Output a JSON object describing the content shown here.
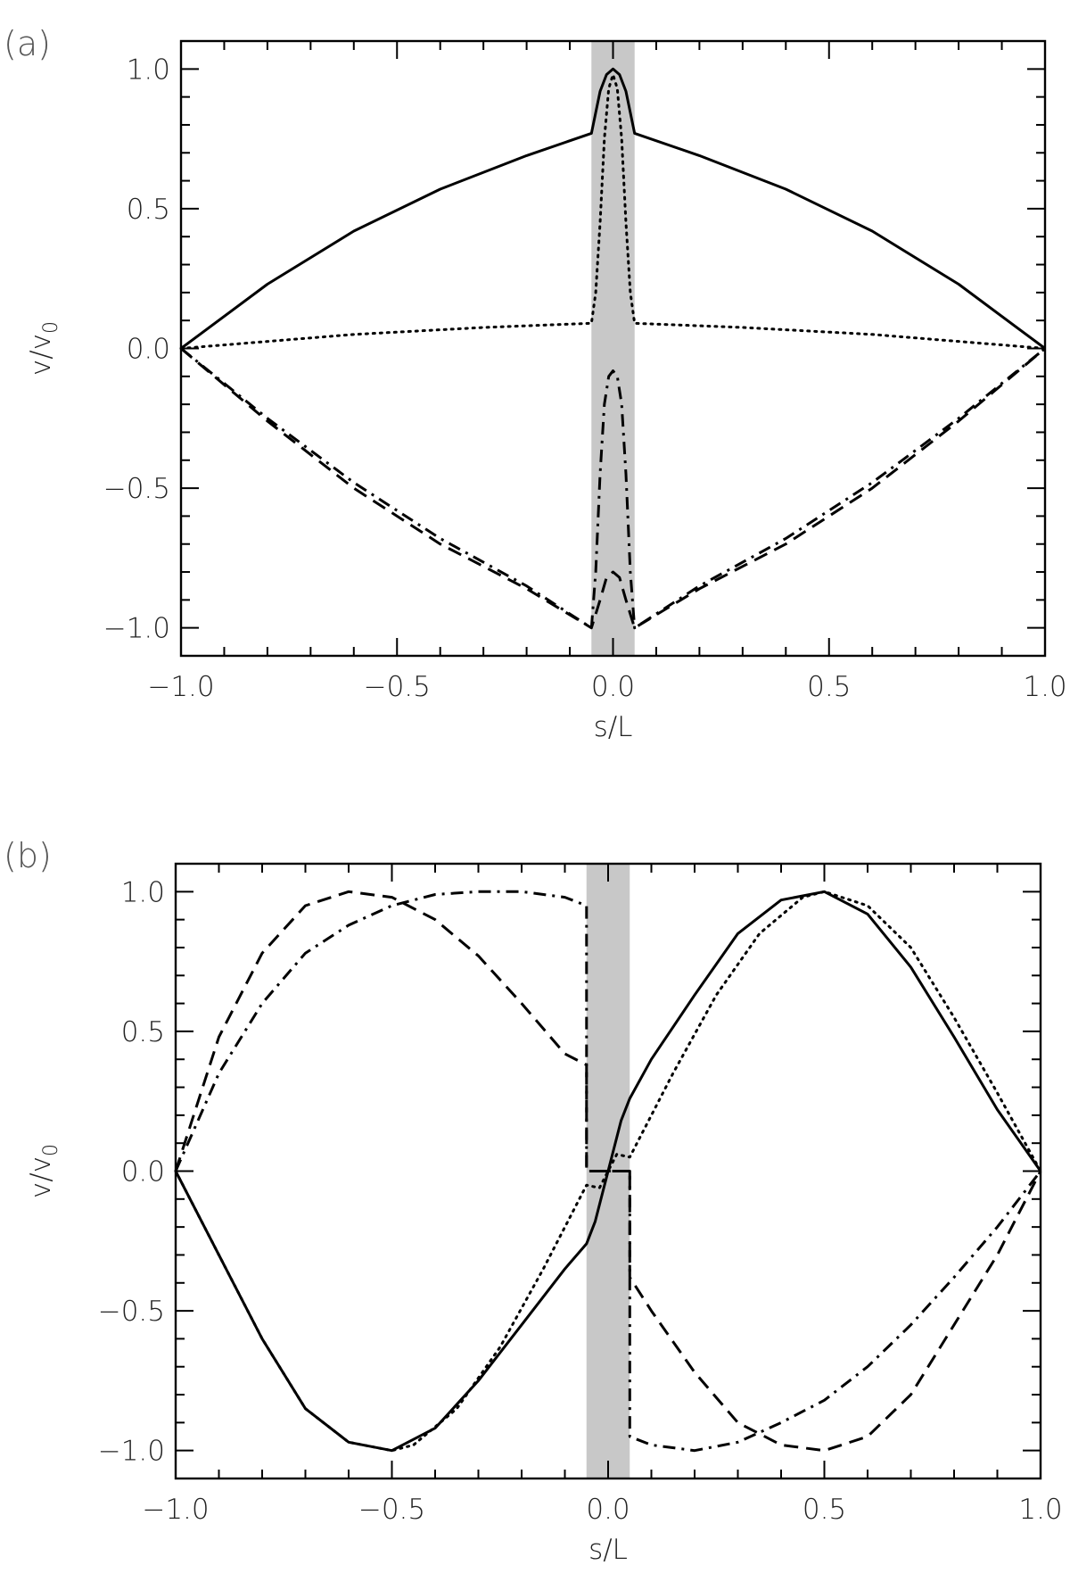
{
  "chart_data": [
    {
      "panel_label": "(a)",
      "type": "line",
      "xlabel": "s/L",
      "ylabel": "v/v0",
      "ylabel_main": "v/v",
      "ylabel_sub": "0",
      "xlim": [
        -1.0,
        1.0
      ],
      "ylim": [
        -1.1,
        1.1
      ],
      "xticks": [
        -1.0,
        -0.5,
        0.0,
        0.5,
        1.0
      ],
      "xtick_labels": [
        "−1.0",
        "−0.5",
        "0.0",
        "0.5",
        "1.0"
      ],
      "yticks": [
        -1.0,
        -0.5,
        0.0,
        0.5,
        1.0
      ],
      "ytick_labels": [
        "−1.0",
        "−0.5",
        "0.0",
        "0.5",
        "1.0"
      ],
      "shaded_band": [
        -0.05,
        0.05
      ],
      "grid": false,
      "series": [
        {
          "style": "solid",
          "x": [
            -1.0,
            -0.8,
            -0.6,
            -0.4,
            -0.2,
            -0.05,
            -0.03,
            -0.015,
            0.0,
            0.015,
            0.03,
            0.05,
            0.2,
            0.4,
            0.6,
            0.8,
            1.0
          ],
          "y": [
            0.0,
            0.23,
            0.42,
            0.57,
            0.69,
            0.77,
            0.92,
            0.98,
            1.0,
            0.98,
            0.92,
            0.77,
            0.69,
            0.57,
            0.42,
            0.23,
            0.0
          ]
        },
        {
          "style": "dotted",
          "x": [
            -1.0,
            -0.6,
            -0.3,
            -0.05,
            -0.04,
            -0.03,
            -0.02,
            -0.01,
            0.0,
            0.01,
            0.02,
            0.03,
            0.04,
            0.05,
            0.3,
            0.6,
            1.0
          ],
          "y": [
            0.0,
            0.05,
            0.075,
            0.09,
            0.2,
            0.45,
            0.75,
            0.93,
            0.98,
            0.93,
            0.75,
            0.45,
            0.2,
            0.09,
            0.075,
            0.05,
            0.0
          ]
        },
        {
          "style": "dashed",
          "x": [
            -1.0,
            -0.8,
            -0.6,
            -0.4,
            -0.2,
            -0.05,
            -0.03,
            -0.015,
            0.0,
            0.015,
            0.03,
            0.05,
            0.2,
            0.4,
            0.6,
            0.8,
            1.0
          ],
          "y": [
            0.0,
            -0.26,
            -0.5,
            -0.7,
            -0.86,
            -1.0,
            -0.9,
            -0.82,
            -0.8,
            -0.82,
            -0.9,
            -1.0,
            -0.86,
            -0.7,
            -0.5,
            -0.26,
            0.0
          ]
        },
        {
          "style": "dash-dot",
          "x": [
            -1.0,
            -0.8,
            -0.6,
            -0.4,
            -0.2,
            -0.05,
            -0.04,
            -0.03,
            -0.02,
            -0.01,
            0.0,
            0.01,
            0.02,
            0.03,
            0.04,
            0.05,
            0.2,
            0.4,
            0.6,
            0.8,
            1.0
          ],
          "y": [
            0.0,
            -0.25,
            -0.48,
            -0.68,
            -0.85,
            -1.0,
            -0.8,
            -0.45,
            -0.2,
            -0.1,
            -0.08,
            -0.1,
            -0.2,
            -0.45,
            -0.8,
            -1.0,
            -0.85,
            -0.68,
            -0.48,
            -0.25,
            0.0
          ]
        }
      ]
    },
    {
      "panel_label": "(b)",
      "type": "line",
      "xlabel": "s/L",
      "ylabel": "v/v0",
      "ylabel_main": "v/v",
      "ylabel_sub": "0",
      "xlim": [
        -1.0,
        1.0
      ],
      "ylim": [
        -1.1,
        1.1
      ],
      "xticks": [
        -1.0,
        -0.5,
        0.0,
        0.5,
        1.0
      ],
      "xtick_labels": [
        "−1.0",
        "−0.5",
        "0.0",
        "0.5",
        "1.0"
      ],
      "yticks": [
        -1.0,
        -0.5,
        0.0,
        0.5,
        1.0
      ],
      "ytick_labels": [
        "−1.0",
        "−0.5",
        "0.0",
        "0.5",
        "1.0"
      ],
      "shaded_band": [
        -0.05,
        0.05
      ],
      "grid": false,
      "series": [
        {
          "style": "solid",
          "x": [
            -1.0,
            -0.9,
            -0.8,
            -0.7,
            -0.6,
            -0.5,
            -0.4,
            -0.3,
            -0.2,
            -0.1,
            -0.05,
            -0.03,
            0.0,
            0.03,
            0.05,
            0.1,
            0.2,
            0.3,
            0.4,
            0.5,
            0.6,
            0.7,
            0.8,
            0.9,
            1.0
          ],
          "y": [
            0.0,
            -0.3,
            -0.6,
            -0.85,
            -0.97,
            -1.0,
            -0.92,
            -0.75,
            -0.55,
            -0.35,
            -0.26,
            -0.18,
            0.0,
            0.18,
            0.26,
            0.4,
            0.63,
            0.85,
            0.97,
            1.0,
            0.92,
            0.73,
            0.48,
            0.22,
            0.0
          ]
        },
        {
          "style": "dotted",
          "x": [
            -1.0,
            -0.9,
            -0.8,
            -0.7,
            -0.6,
            -0.5,
            -0.45,
            -0.35,
            -0.25,
            -0.15,
            -0.05,
            -0.02,
            0.0,
            0.02,
            0.05,
            0.15,
            0.25,
            0.35,
            0.45,
            0.5,
            0.6,
            0.7,
            0.8,
            0.9,
            1.0
          ],
          "y": [
            0.0,
            -0.3,
            -0.6,
            -0.85,
            -0.97,
            -1.0,
            -0.98,
            -0.85,
            -0.63,
            -0.35,
            -0.05,
            -0.06,
            0.0,
            0.06,
            0.05,
            0.35,
            0.63,
            0.85,
            0.98,
            1.0,
            0.95,
            0.8,
            0.55,
            0.28,
            0.0
          ]
        },
        {
          "style": "dashed",
          "x": [
            -1.0,
            -0.9,
            -0.8,
            -0.7,
            -0.6,
            -0.5,
            -0.4,
            -0.3,
            -0.2,
            -0.1,
            -0.05,
            -0.05,
            0.05,
            0.05,
            0.1,
            0.2,
            0.3,
            0.4,
            0.5,
            0.6,
            0.7,
            0.8,
            0.9,
            1.0
          ],
          "y": [
            0.0,
            0.48,
            0.78,
            0.95,
            1.0,
            0.98,
            0.9,
            0.77,
            0.6,
            0.42,
            0.38,
            0.0,
            0.0,
            -0.38,
            -0.5,
            -0.72,
            -0.9,
            -0.98,
            -1.0,
            -0.95,
            -0.8,
            -0.55,
            -0.3,
            0.0
          ]
        },
        {
          "style": "dash-dot",
          "x": [
            -1.0,
            -0.9,
            -0.8,
            -0.7,
            -0.6,
            -0.5,
            -0.4,
            -0.3,
            -0.2,
            -0.1,
            -0.05,
            -0.05,
            0.05,
            0.05,
            0.1,
            0.2,
            0.3,
            0.4,
            0.5,
            0.6,
            0.7,
            0.8,
            0.9,
            1.0
          ],
          "y": [
            0.0,
            0.35,
            0.6,
            0.78,
            0.88,
            0.95,
            0.99,
            1.0,
            1.0,
            0.98,
            0.95,
            0.0,
            0.0,
            -0.95,
            -0.98,
            -1.0,
            -0.97,
            -0.9,
            -0.82,
            -0.7,
            -0.55,
            -0.38,
            -0.2,
            0.0
          ]
        }
      ]
    }
  ]
}
